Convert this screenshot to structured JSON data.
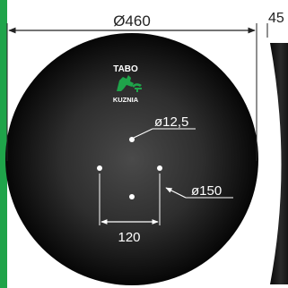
{
  "brand": {
    "name": "TABO",
    "subname": "KUZNIA",
    "logo_icon": "rooster-horseshoe-logo",
    "logo_color": "#1fa44a"
  },
  "dimensions": {
    "outer_diameter": "Ø460",
    "center_hole": "ø12,5",
    "bolt_circle": "ø150",
    "hole_spacing": "120",
    "side_thickness": "45"
  },
  "colors": {
    "disc_center": "#454545",
    "disc_edge": "#050505",
    "accent_strip": "#1fa44a",
    "dimension_lines_on_disc": "#ffffff",
    "dimension_lines_on_paper": "#222222"
  }
}
